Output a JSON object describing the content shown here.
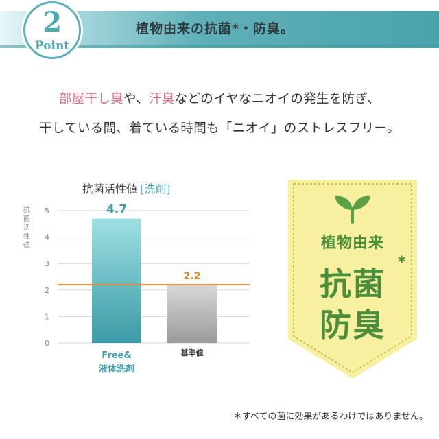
{
  "header": {
    "point_number": "2",
    "point_word": "Point",
    "title": "植物由来の抗菌*・防臭。"
  },
  "lead": {
    "line1_part1": "部屋干し臭",
    "line1_part2": "や、",
    "line1_part3": "汗臭",
    "line1_part4": "などのイヤなニオイの発生を防ぎ、",
    "line2": "干している間、着ている時間も「ニオイ」のストレスフリー。"
  },
  "colors": {
    "accent_pink": "#d9738a",
    "teal": "#4aa3ad",
    "baseline_orange": "#e8822e",
    "ribbon_fill": "#f6f0a0",
    "ribbon_green": "#4d8e3d"
  },
  "chart_data": {
    "type": "bar",
    "title": "抗菌活性値",
    "title_tag": "[洗剤]",
    "ylabel": "抗菌活性値",
    "ylim": [
      0,
      5
    ],
    "yticks": [
      "0",
      "1",
      "2",
      "3",
      "4",
      "5"
    ],
    "categories": [
      "Free&\n液体洗剤",
      "基準値"
    ],
    "category_free_line1": "Free&",
    "category_free_line2": "液体洗剤",
    "category_ref": "基準値",
    "values": [
      4.7,
      2.2
    ],
    "value_labels": [
      "4.7",
      "2.2"
    ],
    "reference_line": 2.2
  },
  "badge": {
    "icon": "sprout-icon",
    "line1": "植物由来",
    "line2": "抗菌",
    "line3": "防臭",
    "asterisk": "*"
  },
  "footnote": "＊すべての菌に効果があるわけではありません。"
}
